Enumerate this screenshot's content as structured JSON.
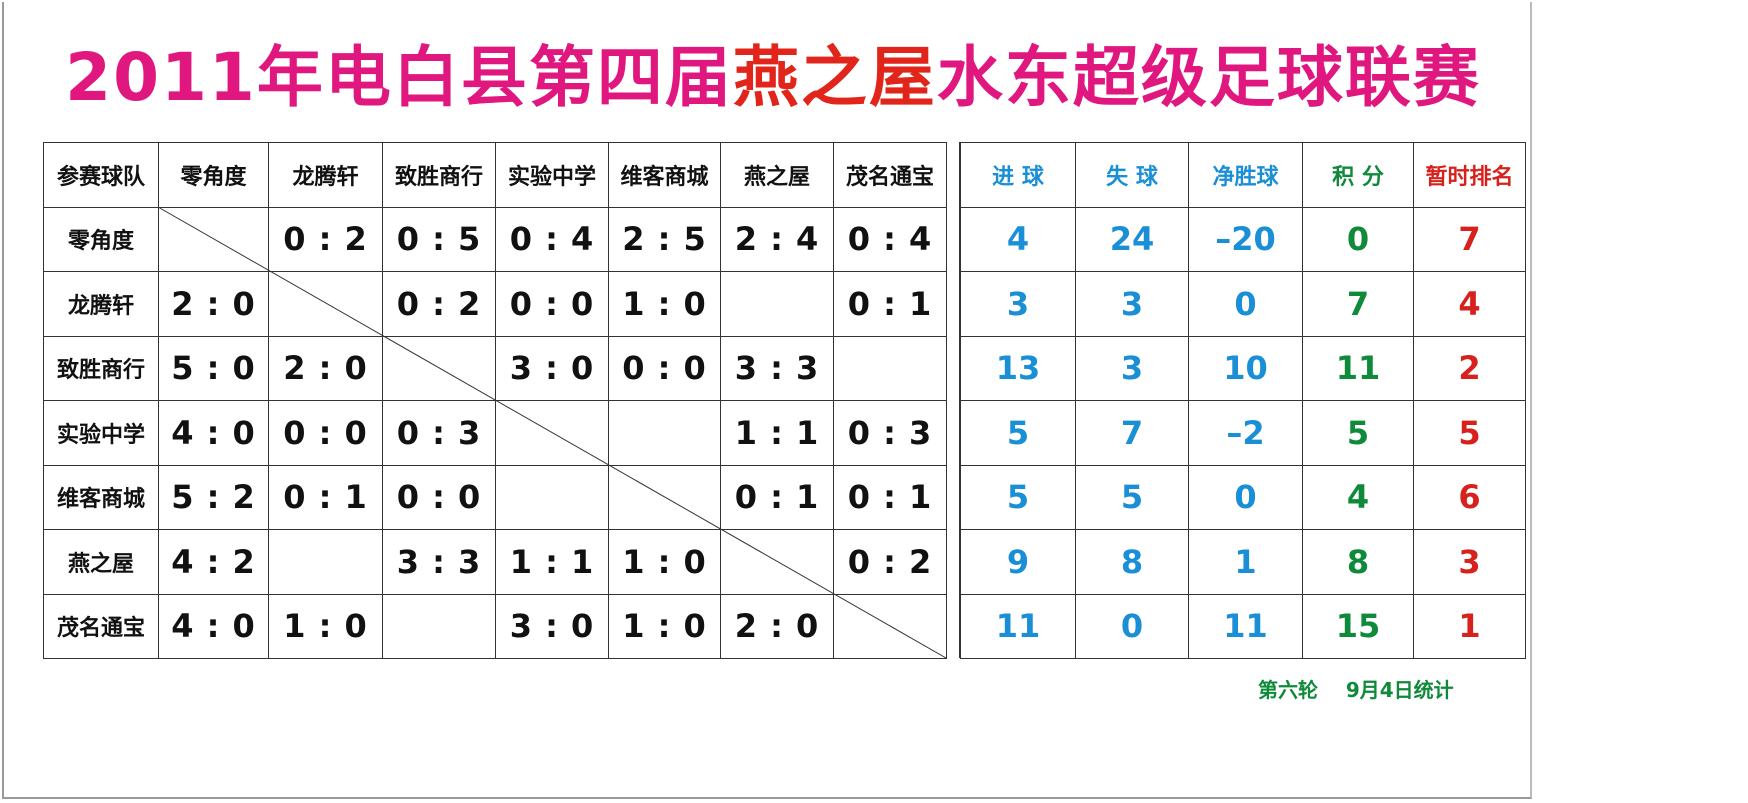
{
  "title": {
    "part1": "2011年电白县第四届",
    "highlight": "燕之屋",
    "part2": "水东超级足球联赛"
  },
  "colors": {
    "title": "#e0177f",
    "highlight": "#e1251b",
    "blue": "#1a8fd6",
    "green": "#0f8a3a",
    "red": "#d6211c"
  },
  "matrix": {
    "corner": "参赛球队",
    "teams": [
      "零角度",
      "龙腾轩",
      "致胜商行",
      "实验中学",
      "维客商城",
      "燕之屋",
      "茂名通宝"
    ],
    "rows": [
      [
        "",
        "0 : 2",
        "0 : 5",
        "0 : 4",
        "2 : 5",
        "2 : 4",
        "0 : 4"
      ],
      [
        "2 : 0",
        "",
        "0 : 2",
        "0 : 0",
        "1 : 0",
        "",
        "0 : 1"
      ],
      [
        "5 : 0",
        "2 : 0",
        "",
        "3 : 0",
        "0 : 0",
        "3 : 3",
        ""
      ],
      [
        "4 : 0",
        "0 : 0",
        "0 : 3",
        "",
        "",
        "1 : 1",
        "0 : 3"
      ],
      [
        "5 : 2",
        "0 : 1",
        "0 : 0",
        "",
        "",
        "0 : 1",
        "0 : 1"
      ],
      [
        "4 : 2",
        "",
        "3 : 3",
        "1 : 1",
        "1 : 0",
        "",
        "0 : 2"
      ],
      [
        "4 : 0",
        "1 : 0",
        "",
        "3 : 0",
        "1 : 0",
        "2 : 0",
        ""
      ]
    ]
  },
  "stats": {
    "headers": [
      "进  球",
      "失  球",
      "净胜球",
      "积  分",
      "暂时排名"
    ],
    "rows": [
      [
        "4",
        "24",
        "–20",
        "0",
        "7"
      ],
      [
        "3",
        "3",
        "0",
        "7",
        "4"
      ],
      [
        "13",
        "3",
        "10",
        "11",
        "2"
      ],
      [
        "5",
        "7",
        "–2",
        "5",
        "5"
      ],
      [
        "5",
        "5",
        "0",
        "4",
        "6"
      ],
      [
        "9",
        "8",
        "1",
        "8",
        "3"
      ],
      [
        "11",
        "0",
        "11",
        "15",
        "1"
      ]
    ]
  },
  "footer": "第六轮    9月4日统计"
}
